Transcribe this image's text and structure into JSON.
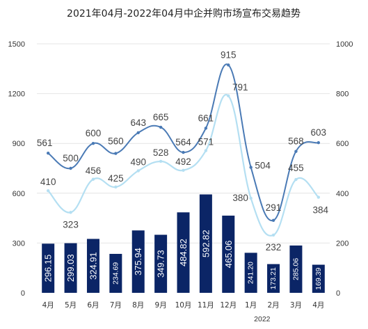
{
  "chart_data": {
    "type": "bar+line",
    "title": "2021年04月-2022年04月中企并购市场宣布交易趋势",
    "categories": [
      "4月",
      "5月",
      "6月",
      "7月",
      "8月",
      "9月",
      "10月",
      "11月",
      "12月",
      "1月",
      "2月",
      "3月",
      "4月"
    ],
    "year_label": "2022",
    "left_axis": {
      "ylim": [
        0,
        1500
      ],
      "ticks": [
        "0",
        "300",
        "600",
        "900",
        "1200",
        "1500"
      ]
    },
    "right_axis": {
      "ylim": [
        0,
        1000
      ],
      "ticks": [
        "0",
        "200",
        "400",
        "600",
        "800",
        "1000"
      ]
    },
    "series": [
      {
        "type": "bar",
        "axis": "left",
        "color": "#0b2566",
        "values": [
          296.15,
          299.03,
          324.91,
          234.69,
          375.94,
          349.73,
          484.82,
          592.82,
          465.06,
          241.2,
          173.21,
          285.06,
          169.39
        ],
        "labels": [
          "296.15",
          "299.03",
          "324.91",
          "234.69",
          "375.94",
          "349.73",
          "484.82",
          "592.82",
          "465.06",
          "241.20",
          "173.21",
          "285.06",
          "169.39"
        ]
      },
      {
        "type": "line",
        "axis": "right",
        "color": "#4a7ab5",
        "values": [
          561,
          500,
          600,
          560,
          643,
          665,
          564,
          661,
          915,
          504,
          291,
          568,
          603
        ],
        "labels": [
          "561",
          "500",
          "600",
          "560",
          "643",
          "665",
          "564",
          "661",
          "915",
          "504",
          "291",
          "568",
          "603"
        ]
      },
      {
        "type": "line",
        "axis": "right",
        "color": "#b4dff2",
        "values": [
          410,
          323,
          456,
          425,
          490,
          528,
          492,
          571,
          791,
          380,
          232,
          455,
          384
        ],
        "labels": [
          "410",
          "323",
          "456",
          "425",
          "490",
          "528",
          "492",
          "571",
          "791",
          "380",
          "232",
          "455",
          "384"
        ]
      }
    ]
  }
}
